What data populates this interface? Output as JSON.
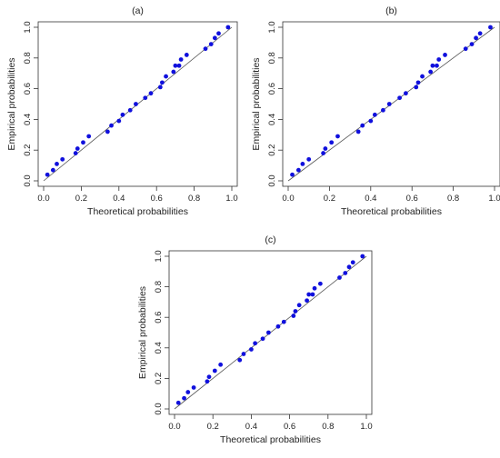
{
  "chart_data": [
    {
      "type": "scatter",
      "title": "(a)",
      "xlabel": "Theoretical probabilities",
      "ylabel": "Empirical probabilities",
      "xlim": [
        0,
        1
      ],
      "ylim": [
        0,
        1
      ],
      "xticks": [
        "0.0",
        "0.2",
        "0.4",
        "0.6",
        "0.8",
        "1.0"
      ],
      "yticks": [
        "0.0",
        "0.2",
        "0.4",
        "0.6",
        "0.8",
        "1.0"
      ],
      "reference_line": "y = x",
      "grid": false,
      "legend": "none",
      "point_color": "#1010dd",
      "line_color": "#555555",
      "series": [
        {
          "x": [
            0.02,
            0.05,
            0.07,
            0.1,
            0.17,
            0.18,
            0.21,
            0.24,
            0.34,
            0.36,
            0.4,
            0.42,
            0.46,
            0.49,
            0.54,
            0.57,
            0.62,
            0.63,
            0.65,
            0.69,
            0.7,
            0.72,
            0.73,
            0.76,
            0.86,
            0.89,
            0.91,
            0.93,
            0.98
          ],
          "y": [
            0.04,
            0.07,
            0.11,
            0.14,
            0.18,
            0.21,
            0.25,
            0.29,
            0.32,
            0.36,
            0.39,
            0.43,
            0.46,
            0.5,
            0.54,
            0.57,
            0.61,
            0.64,
            0.68,
            0.71,
            0.75,
            0.75,
            0.79,
            0.82,
            0.86,
            0.89,
            0.93,
            0.96,
            1.0
          ]
        }
      ]
    },
    {
      "type": "scatter",
      "title": "(b)",
      "xlabel": "Theoretical probabilities",
      "ylabel": "Empirical probabilities",
      "xlim": [
        0,
        1
      ],
      "ylim": [
        0,
        1
      ],
      "xticks": [
        "0.0",
        "0.2",
        "0.4",
        "0.6",
        "0.8",
        "1.0"
      ],
      "yticks": [
        "0.0",
        "0.2",
        "0.4",
        "0.6",
        "0.8",
        "1.0"
      ],
      "reference_line": "y = x",
      "grid": false,
      "legend": "none",
      "point_color": "#1010dd",
      "line_color": "#555555",
      "series": [
        {
          "x": [
            0.02,
            0.05,
            0.07,
            0.1,
            0.17,
            0.18,
            0.21,
            0.24,
            0.34,
            0.36,
            0.4,
            0.42,
            0.46,
            0.49,
            0.54,
            0.57,
            0.62,
            0.63,
            0.65,
            0.69,
            0.7,
            0.72,
            0.73,
            0.76,
            0.86,
            0.89,
            0.91,
            0.93,
            0.98
          ],
          "y": [
            0.04,
            0.07,
            0.11,
            0.14,
            0.18,
            0.21,
            0.25,
            0.29,
            0.32,
            0.36,
            0.39,
            0.43,
            0.46,
            0.5,
            0.54,
            0.57,
            0.61,
            0.64,
            0.68,
            0.71,
            0.75,
            0.75,
            0.79,
            0.82,
            0.86,
            0.89,
            0.93,
            0.96,
            1.0
          ]
        }
      ]
    },
    {
      "type": "scatter",
      "title": "(c)",
      "xlabel": "Theoretical probabilities",
      "ylabel": "Empirical probabilities",
      "xlim": [
        0,
        1
      ],
      "ylim": [
        0,
        1
      ],
      "xticks": [
        "0.0",
        "0.2",
        "0.4",
        "0.6",
        "0.8",
        "1.0"
      ],
      "yticks": [
        "0.0",
        "0.2",
        "0.4",
        "0.6",
        "0.8",
        "1.0"
      ],
      "reference_line": "y = x",
      "grid": false,
      "legend": "none",
      "point_color": "#1010dd",
      "line_color": "#555555",
      "series": [
        {
          "x": [
            0.02,
            0.05,
            0.07,
            0.1,
            0.17,
            0.18,
            0.21,
            0.24,
            0.34,
            0.36,
            0.4,
            0.42,
            0.46,
            0.49,
            0.54,
            0.57,
            0.62,
            0.63,
            0.65,
            0.69,
            0.7,
            0.72,
            0.73,
            0.76,
            0.86,
            0.89,
            0.91,
            0.93,
            0.98
          ],
          "y": [
            0.04,
            0.07,
            0.11,
            0.14,
            0.18,
            0.21,
            0.25,
            0.29,
            0.32,
            0.36,
            0.39,
            0.43,
            0.46,
            0.5,
            0.54,
            0.57,
            0.61,
            0.64,
            0.68,
            0.71,
            0.75,
            0.75,
            0.79,
            0.82,
            0.86,
            0.89,
            0.93,
            0.96,
            1.0
          ]
        }
      ]
    }
  ]
}
